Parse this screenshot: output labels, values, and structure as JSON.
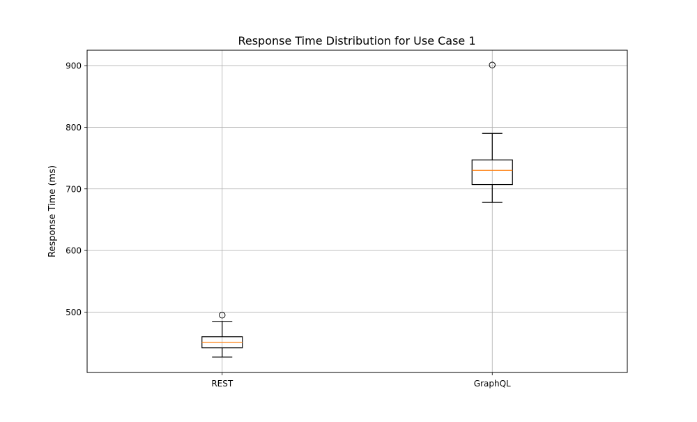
{
  "chart_data": {
    "type": "box",
    "title": "Response Time Distribution for Use Case 1",
    "xlabel": "",
    "ylabel": "Response Time (ms)",
    "categories": [
      "REST",
      "GraphQL"
    ],
    "boxes": [
      {
        "name": "REST",
        "whisker_low": 427,
        "q1": 442,
        "median": 451,
        "q3": 460,
        "whisker_high": 485,
        "outliers": [
          495
        ]
      },
      {
        "name": "GraphQL",
        "whisker_low": 678,
        "q1": 707,
        "median": 730,
        "q3": 747,
        "whisker_high": 790,
        "outliers": [
          901
        ]
      }
    ],
    "ylim": [
      402,
      925
    ],
    "yticks": [
      500,
      600,
      700,
      800,
      900
    ],
    "grid": true,
    "colors": {
      "box": "#000000",
      "median": "#ff7f0e",
      "grid": "#b0b0b0",
      "axes": "#000000"
    }
  }
}
